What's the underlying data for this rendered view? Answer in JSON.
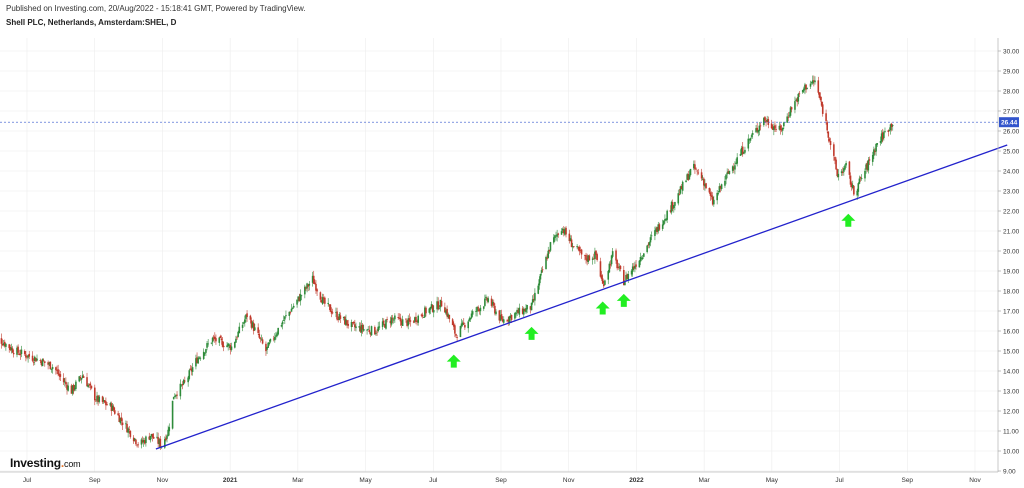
{
  "header": {
    "published": "Published on Investing.com, 20/Aug/2022 - 15:18:41 GMT, Powered by TradingView.",
    "symbol": "Shell PLC, Netherlands, Amsterdam:SHEL, D"
  },
  "logo": {
    "name": "Investing",
    "suffix": ".com"
  },
  "colors": {
    "up": "#2e8b3a",
    "down": "#c0392b",
    "trendline": "#2222cc",
    "arrow": "#22ee22",
    "price_line": "#3355cc",
    "grid": "#ececec"
  },
  "chart_data": {
    "type": "candlestick",
    "title": "Shell PLC, Netherlands, Amsterdam:SHEL, D",
    "x_ticks": [
      "Jul",
      "Sep",
      "Nov",
      "2021",
      "Mar",
      "May",
      "Jul",
      "Sep",
      "Nov",
      "2022",
      "Mar",
      "May",
      "Jul",
      "Sep",
      "Nov"
    ],
    "y_ticks": [
      "9.00",
      "10.00",
      "11.00",
      "12.00",
      "13.00",
      "14.00",
      "15.00",
      "16.00",
      "17.00",
      "18.00",
      "19.00",
      "20.00",
      "21.00",
      "22.00",
      "23.00",
      "24.00",
      "25.00",
      "26.00",
      "27.00",
      "28.00",
      "29.00",
      "30.00"
    ],
    "ylim": [
      9.0,
      30.0
    ],
    "last_price": "26.44",
    "trendline": {
      "start": {
        "x": "2020-10-25",
        "y": 10.1
      },
      "end": {
        "x": "2022-11-30",
        "y": 25.3
      }
    },
    "support_arrows": [
      "2021-07-20",
      "2021-09-28",
      "2021-12-01",
      "2021-12-20",
      "2022-07-10"
    ],
    "price_path": [
      [
        "2020-06-01",
        15.8
      ],
      [
        "2020-06-20",
        15.0
      ],
      [
        "2020-07-10",
        14.6
      ],
      [
        "2020-07-25",
        14.2
      ],
      [
        "2020-08-01",
        13.6
      ],
      [
        "2020-08-10",
        13.0
      ],
      [
        "2020-08-20",
        13.8
      ],
      [
        "2020-09-01",
        12.6
      ],
      [
        "2020-09-15",
        12.2
      ],
      [
        "2020-10-01",
        11.0
      ],
      [
        "2020-10-10",
        10.3
      ],
      [
        "2020-10-20",
        10.8
      ],
      [
        "2020-10-30",
        10.3
      ],
      [
        "2020-11-05",
        11.0
      ],
      [
        "2020-11-10",
        12.8
      ],
      [
        "2020-11-20",
        13.4
      ],
      [
        "2020-12-01",
        14.6
      ],
      [
        "2020-12-15",
        15.6
      ],
      [
        "2021-01-01",
        15.2
      ],
      [
        "2021-01-15",
        16.8
      ],
      [
        "2021-02-01",
        15.0
      ],
      [
        "2021-02-15",
        16.4
      ],
      [
        "2021-03-01",
        17.5
      ],
      [
        "2021-03-15",
        18.6
      ],
      [
        "2021-03-25",
        17.4
      ],
      [
        "2021-04-05",
        16.8
      ],
      [
        "2021-04-20",
        16.2
      ],
      [
        "2021-05-10",
        16.0
      ],
      [
        "2021-05-25",
        16.6
      ],
      [
        "2021-06-10",
        16.4
      ],
      [
        "2021-06-25",
        17.0
      ],
      [
        "2021-07-10",
        17.4
      ],
      [
        "2021-07-22",
        15.8
      ],
      [
        "2021-08-05",
        16.8
      ],
      [
        "2021-08-20",
        17.6
      ],
      [
        "2021-09-01",
        16.5
      ],
      [
        "2021-09-15",
        16.9
      ],
      [
        "2021-09-28",
        17.2
      ],
      [
        "2021-10-05",
        18.5
      ],
      [
        "2021-10-15",
        20.3
      ],
      [
        "2021-10-25",
        21.2
      ],
      [
        "2021-11-05",
        20.2
      ],
      [
        "2021-11-15",
        19.6
      ],
      [
        "2021-11-25",
        19.8
      ],
      [
        "2021-12-01",
        18.3
      ],
      [
        "2021-12-10",
        19.8
      ],
      [
        "2021-12-20",
        18.5
      ],
      [
        "2022-01-05",
        19.8
      ],
      [
        "2022-01-20",
        21.2
      ],
      [
        "2022-02-05",
        22.6
      ],
      [
        "2022-02-20",
        24.2
      ],
      [
        "2022-03-01",
        23.6
      ],
      [
        "2022-03-10",
        22.4
      ],
      [
        "2022-03-25",
        24.0
      ],
      [
        "2022-04-10",
        25.4
      ],
      [
        "2022-04-25",
        26.6
      ],
      [
        "2022-05-10",
        26.0
      ],
      [
        "2022-05-20",
        27.2
      ],
      [
        "2022-06-01",
        28.2
      ],
      [
        "2022-06-10",
        28.5
      ],
      [
        "2022-06-20",
        26.4
      ],
      [
        "2022-06-30",
        23.8
      ],
      [
        "2022-07-08",
        24.2
      ],
      [
        "2022-07-15",
        22.9
      ],
      [
        "2022-07-25",
        24.0
      ],
      [
        "2022-08-05",
        25.4
      ],
      [
        "2022-08-19",
        26.44
      ]
    ]
  }
}
